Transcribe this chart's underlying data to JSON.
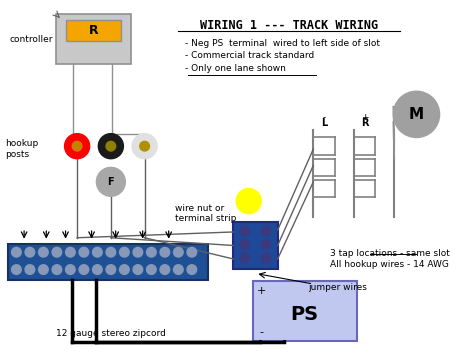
{
  "title": "WIRING 1 --- TRACK WIRING",
  "background_color": "#ffffff",
  "bullets": [
    "- Neg PS  terminal  wired to left side of slot",
    "- Commercial track standard",
    "- Only one lane shown"
  ],
  "controller_label": "controller",
  "hookup_label": "hookup\nposts",
  "wire_nut_label": "wire nut or\nterminal strip",
  "zipcord_label": "12 gauge stereo zipcord",
  "jumper_label": "jumper wires",
  "tap_label": "3 tap locations - same slot\nAll hookup wires - 14 AWG",
  "ps_label": "PS",
  "m_label": "M",
  "f_label": "F",
  "r_label": "R",
  "plus_label": "+",
  "minus_label": "-",
  "l_label": "L",
  "r2_label": "R"
}
